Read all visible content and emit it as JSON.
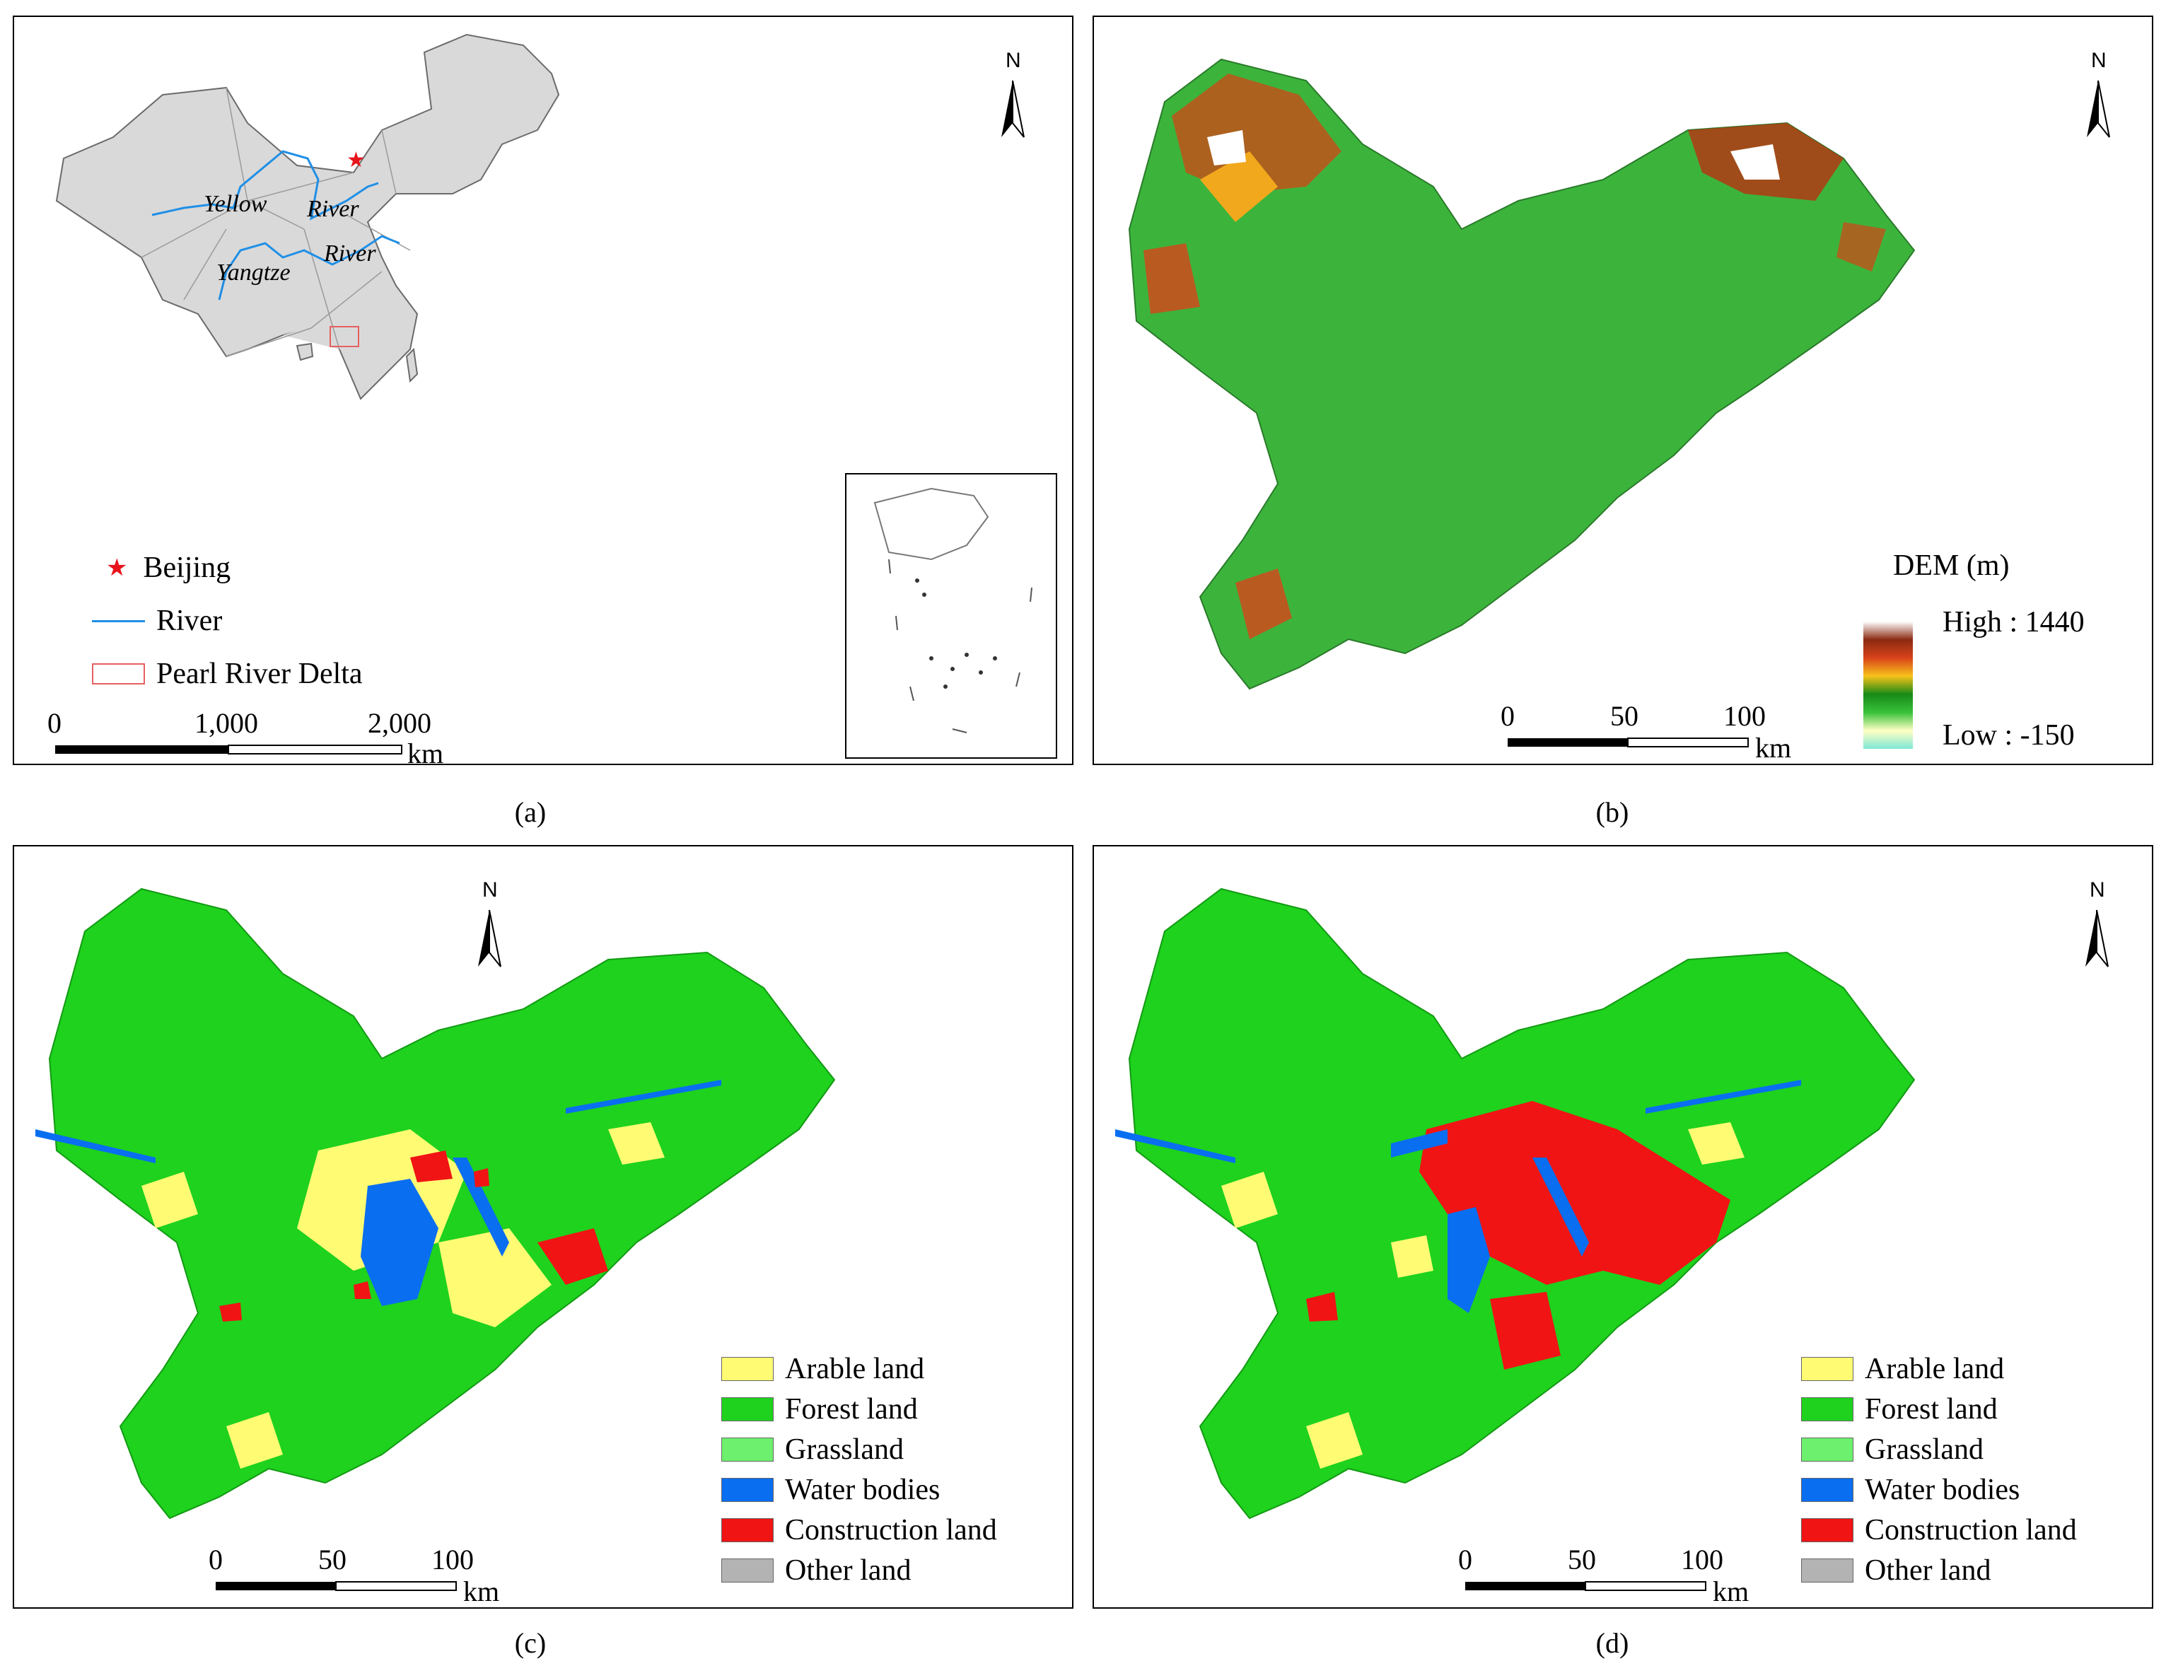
{
  "panel_a": {
    "caption": "(a)",
    "north": "N",
    "labels": {
      "yellow1": "Yellow",
      "river1": "River",
      "river2": "River",
      "yangtze": "Yangtze"
    },
    "legend": [
      {
        "label": "Beijing",
        "icon": "star-icon",
        "color": "#e8141c"
      },
      {
        "label": "River",
        "icon": "river-line-icon",
        "color": "#1f8fe6"
      },
      {
        "label": "Pearl River Delta",
        "icon": "boundary-box-icon",
        "color": "#e66060"
      }
    ],
    "scale": {
      "ticks": [
        "0",
        "1,000",
        "2,000"
      ],
      "unit": "km"
    }
  },
  "panel_b": {
    "caption": "(b)",
    "north": "N",
    "legend_title": "DEM (m)",
    "high": "High : 1440",
    "low": "Low : -150",
    "ramp_colors": [
      "#ffffff",
      "#8b2a12",
      "#d8431a",
      "#f7c21a",
      "#178a17",
      "#39c23a",
      "#ffffc4",
      "#7fe8d6"
    ],
    "scale": {
      "ticks": [
        "0",
        "50",
        "100"
      ],
      "unit": "km"
    }
  },
  "panel_c": {
    "caption": "(c)",
    "north": "N",
    "scale": {
      "ticks": [
        "0",
        "50",
        "100"
      ],
      "unit": "km"
    }
  },
  "panel_d": {
    "caption": "(d)",
    "north": "N",
    "scale": {
      "ticks": [
        "0",
        "50",
        "100"
      ],
      "unit": "km"
    }
  },
  "landuse_legend": [
    {
      "label": "Arable land",
      "color": "#fffb73"
    },
    {
      "label": "Forest land",
      "color": "#1ed21e"
    },
    {
      "label": "Grassland",
      "color": "#6df06d"
    },
    {
      "label": "Water bodies",
      "color": "#0a6ef0"
    },
    {
      "label": "Construction land",
      "color": "#f01414"
    },
    {
      "label": "Other land",
      "color": "#b3b3b3"
    }
  ]
}
